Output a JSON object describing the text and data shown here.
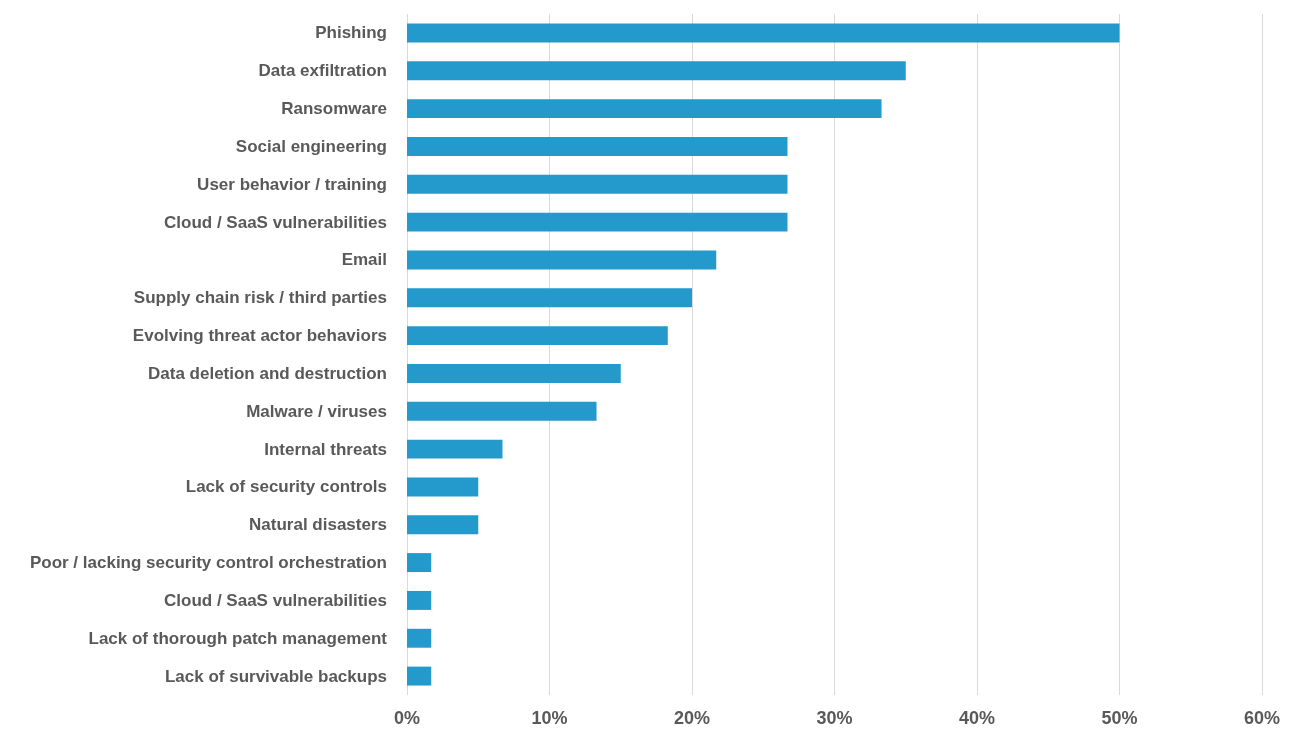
{
  "chart_data": {
    "type": "bar",
    "orientation": "horizontal",
    "categories": [
      "Phishing",
      "Data exfiltration",
      "Ransomware",
      "Social engineering",
      "User behavior / training",
      "Cloud / SaaS vulnerabilities",
      "Email",
      "Supply chain risk / third parties",
      "Evolving threat actor behaviors",
      "Data deletion and destruction",
      "Malware / viruses",
      "Internal threats",
      "Lack of security controls",
      "Natural disasters",
      "Poor / lacking security control orchestration",
      "Cloud / SaaS vulnerabilities",
      "Lack of thorough patch management",
      "Lack of survivable backups"
    ],
    "values": [
      50,
      35,
      33.3,
      26.7,
      26.7,
      26.7,
      21.7,
      20,
      18.3,
      15,
      13.3,
      6.7,
      5,
      5,
      1.7,
      1.7,
      1.7,
      1.7
    ],
    "color": "#2399cc",
    "xlim": [
      0,
      60
    ],
    "xticks": [
      {
        "value": 0,
        "label": "0%"
      },
      {
        "value": 10,
        "label": "10%"
      },
      {
        "value": 20,
        "label": "20%"
      },
      {
        "value": 30,
        "label": "30%"
      },
      {
        "value": 40,
        "label": "40%"
      },
      {
        "value": 50,
        "label": "50%"
      },
      {
        "value": 60,
        "label": "60%"
      }
    ],
    "grid": "x"
  }
}
